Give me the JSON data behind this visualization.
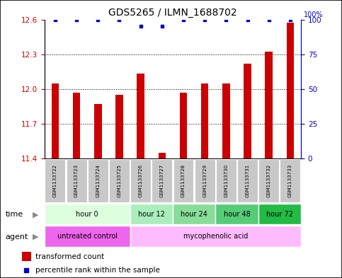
{
  "title": "GDS5265 / ILMN_1688702",
  "samples": [
    "GSM1133722",
    "GSM1133723",
    "GSM1133724",
    "GSM1133725",
    "GSM1133726",
    "GSM1133727",
    "GSM1133728",
    "GSM1133729",
    "GSM1133730",
    "GSM1133731",
    "GSM1133732",
    "GSM1133733"
  ],
  "bar_values": [
    12.05,
    11.97,
    11.87,
    11.95,
    12.13,
    11.45,
    11.97,
    12.05,
    12.05,
    12.22,
    12.32,
    12.57
  ],
  "percentile_values": [
    100,
    100,
    100,
    100,
    95,
    95,
    100,
    100,
    100,
    100,
    100,
    100
  ],
  "bar_color": "#cc0000",
  "percentile_color": "#0000cc",
  "ylim_left": [
    11.4,
    12.6
  ],
  "ylim_right": [
    0,
    100
  ],
  "yticks_left": [
    11.4,
    11.7,
    12.0,
    12.3,
    12.6
  ],
  "yticks_right": [
    0,
    25,
    50,
    75,
    100
  ],
  "time_groups": [
    {
      "label": "hour 0",
      "start": 0,
      "end": 3,
      "color": "#ddffdd"
    },
    {
      "label": "hour 12",
      "start": 4,
      "end": 5,
      "color": "#aaeebb"
    },
    {
      "label": "hour 24",
      "start": 6,
      "end": 7,
      "color": "#88dd99"
    },
    {
      "label": "hour 48",
      "start": 8,
      "end": 9,
      "color": "#55cc77"
    },
    {
      "label": "hour 72",
      "start": 10,
      "end": 11,
      "color": "#22bb44"
    }
  ],
  "agent_groups": [
    {
      "label": "untreated control",
      "start": 0,
      "end": 3,
      "color": "#ee66ee"
    },
    {
      "label": "mycophenolic acid",
      "start": 4,
      "end": 11,
      "color": "#ffbbff"
    }
  ],
  "time_label": "time",
  "agent_label": "agent",
  "legend1": "transformed count",
  "legend2": "percentile rank within the sample",
  "left_tick_color": "#cc0000",
  "right_axis_color": "#0000cc",
  "sample_box_color": "#c8c8c8",
  "bar_bottom": 11.4,
  "fig_width": 4.83,
  "fig_height": 3.93,
  "dpi": 100
}
